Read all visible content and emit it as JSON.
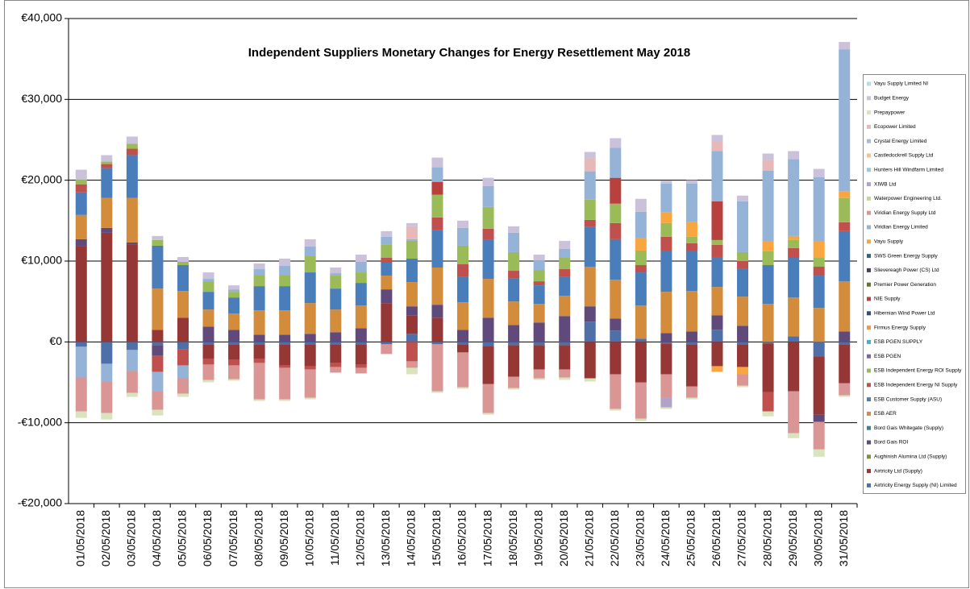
{
  "chart_data": {
    "type": "stacked-bar",
    "title": "Independent Suppliers Monetary Changes  for Energy Resettlement May 2018",
    "categories": [
      "01/05/2018",
      "02/05/2018",
      "03/05/2018",
      "04/05/2018",
      "05/05/2018",
      "06/05/2018",
      "07/05/2018",
      "08/05/2018",
      "09/05/2018",
      "10/05/2018",
      "11/05/2018",
      "12/05/2018",
      "13/05/2018",
      "14/05/2018",
      "15/05/2018",
      "16/05/2018",
      "17/05/2018",
      "18/05/2018",
      "19/05/2018",
      "20/05/2018",
      "21/05/2018",
      "22/05/2018",
      "23/05/2018",
      "24/05/2018",
      "25/05/2018",
      "26/05/2018",
      "27/05/2018",
      "28/05/2018",
      "29/05/2018",
      "30/05/2018",
      "31/05/2018"
    ],
    "ylim": [
      -20000,
      40000
    ],
    "yticks": [
      {
        "value": -20000,
        "label": "-€20,000"
      },
      {
        "value": -10000,
        "label": "-€10,000"
      },
      {
        "value": 0,
        "label": "€0"
      },
      {
        "value": 10000,
        "label": "€10,000"
      },
      {
        "value": 20000,
        "label": "€20,000"
      },
      {
        "value": 30000,
        "label": "€30,000"
      },
      {
        "value": 40000,
        "label": "€40,000"
      }
    ],
    "grid": true,
    "legend": "right",
    "series": [
      {
        "name": "Airtricity Energy Supply (NI) Limited",
        "color": "#4f6fa8",
        "values": [
          -600,
          -2700,
          -1000,
          -400,
          -900,
          -300,
          -300,
          -300,
          -300,
          -300,
          -300,
          -300,
          -300,
          1000,
          -300,
          -300,
          -500,
          -400,
          -400,
          -400,
          2500,
          1400,
          400,
          -200,
          -300,
          1500,
          -300,
          -200,
          700,
          -1800,
          -300
        ]
      },
      {
        "name": "Airtricity Ltd (Supply)",
        "color": "#953735",
        "values": [
          11800,
          13500,
          12000,
          1500,
          3000,
          -1800,
          -1900,
          -1800,
          -2600,
          -2700,
          -2300,
          -2500,
          4800,
          2300,
          3000,
          -1000,
          -4700,
          -3900,
          -3000,
          -3000,
          -4500,
          -4000,
          -5000,
          -3800,
          -5200,
          -3000,
          -2800,
          -6000,
          -6100,
          -7200,
          -4800
        ]
      },
      {
        "name": "Aughinish Alumina Ltd (Supply)",
        "color": "#77933c",
        "values": [
          0,
          0,
          0,
          0,
          0,
          0,
          0,
          0,
          0,
          0,
          0,
          0,
          0,
          0,
          0,
          0,
          0,
          0,
          0,
          0,
          0,
          0,
          0,
          0,
          0,
          0,
          0,
          0,
          0,
          0,
          0
        ]
      },
      {
        "name": "Bord Gais ROI",
        "color": "#604a7b",
        "values": [
          900,
          600,
          300,
          -1300,
          0,
          1900,
          1500,
          900,
          900,
          1000,
          1200,
          1700,
          1700,
          1100,
          1600,
          1500,
          3000,
          2100,
          2400,
          3200,
          1900,
          1500,
          0,
          1100,
          1300,
          1800,
          2000,
          0,
          0,
          -900,
          1300
        ]
      },
      {
        "name": "Bord Gais Whitegate (Supply)",
        "color": "#31859c",
        "values": [
          0,
          0,
          0,
          0,
          0,
          0,
          0,
          0,
          0,
          0,
          0,
          0,
          0,
          0,
          0,
          0,
          0,
          0,
          0,
          0,
          0,
          0,
          0,
          0,
          0,
          0,
          0,
          0,
          0,
          0,
          0
        ]
      },
      {
        "name": "ESB AER",
        "color": "#d38b3c",
        "values": [
          3000,
          3700,
          5500,
          5100,
          3300,
          2100,
          2000,
          3000,
          3000,
          3800,
          2800,
          2800,
          1700,
          3000,
          4600,
          3400,
          4800,
          2900,
          2300,
          2500,
          4900,
          4800,
          4100,
          5100,
          5000,
          3500,
          3600,
          4700,
          4800,
          4200,
          6200
        ]
      },
      {
        "name": "ESB Customer Supply (ASU)",
        "color": "#4a7ebb",
        "values": [
          2800,
          3700,
          5300,
          5300,
          3200,
          2200,
          2000,
          3000,
          3000,
          3800,
          2600,
          2800,
          1600,
          2900,
          4600,
          3200,
          4800,
          2900,
          2300,
          2400,
          4900,
          5000,
          4100,
          5000,
          4900,
          3700,
          3500,
          4800,
          4900,
          4000,
          6200
        ]
      },
      {
        "name": "ESB Independent Energy NI Supply",
        "color": "#c0504d",
        "values": [
          1000,
          500,
          800,
          -2000,
          -2000,
          -700,
          -700,
          -500,
          -300,
          -400,
          -500,
          -400,
          600,
          -2400,
          1600,
          1500,
          1400,
          900,
          500,
          900,
          900,
          2000,
          900,
          1800,
          1000,
          1500,
          900,
          -2400,
          1200,
          1100,
          1100
        ]
      },
      {
        "name": "ESB Independent Energy ROI Supply",
        "color": "#9bbb59",
        "values": [
          600,
          300,
          600,
          700,
          400,
          1300,
          700,
          1400,
          1400,
          2000,
          1600,
          1300,
          1600,
          2200,
          2800,
          2300,
          2700,
          2300,
          1400,
          1400,
          2500,
          2400,
          1800,
          1700,
          800,
          600,
          1100,
          1700,
          1000,
          1100,
          3000
        ]
      },
      {
        "name": "ESB PGEN",
        "color": "#8064a2",
        "values": [
          0,
          0,
          0,
          0,
          0,
          0,
          0,
          0,
          0,
          0,
          0,
          0,
          0,
          0,
          0,
          0,
          0,
          0,
          0,
          0,
          0,
          0,
          0,
          0,
          0,
          0,
          0,
          0,
          0,
          0,
          0
        ]
      },
      {
        "name": "ESB PGEN SUPPLY",
        "color": "#4bacc6",
        "values": [
          0,
          0,
          0,
          0,
          0,
          0,
          0,
          0,
          0,
          0,
          0,
          0,
          0,
          0,
          0,
          0,
          0,
          0,
          0,
          0,
          0,
          0,
          0,
          0,
          0,
          0,
          0,
          0,
          0,
          0,
          0
        ]
      },
      {
        "name": "Firmus Energy Supply",
        "color": "#f79646",
        "values": [
          0,
          0,
          0,
          0,
          0,
          0,
          0,
          0,
          0,
          0,
          0,
          0,
          0,
          0,
          0,
          0,
          0,
          0,
          0,
          0,
          0,
          0,
          0,
          0,
          0,
          0,
          0,
          0,
          0,
          0,
          0
        ]
      },
      {
        "name": "Hibernian Wind Power Ltd",
        "color": "#2c4d75",
        "values": [
          0,
          0,
          0,
          0,
          0,
          0,
          0,
          0,
          0,
          0,
          0,
          0,
          0,
          0,
          0,
          0,
          0,
          0,
          0,
          0,
          0,
          0,
          0,
          0,
          0,
          0,
          0,
          0,
          0,
          0,
          0
        ]
      },
      {
        "name": "NIE Supply",
        "color": "#b8413e",
        "values": [
          0,
          0,
          0,
          0,
          0,
          0,
          0,
          0,
          0,
          0,
          0,
          0,
          0,
          0,
          1600,
          0,
          0,
          0,
          0,
          0,
          0,
          3200,
          0,
          0,
          0,
          4800,
          0,
          0,
          0,
          0,
          0
        ]
      },
      {
        "name": "Premier Power Generation",
        "color": "#5f7530",
        "values": [
          0,
          0,
          0,
          0,
          0,
          0,
          0,
          0,
          0,
          0,
          0,
          0,
          0,
          0,
          0,
          0,
          0,
          0,
          0,
          0,
          0,
          0,
          0,
          0,
          0,
          0,
          0,
          0,
          0,
          0,
          0
        ]
      },
      {
        "name": "Slievereagh Power (CS) Ltd",
        "color": "#4d3b62",
        "values": [
          0,
          0,
          0,
          0,
          0,
          0,
          0,
          0,
          0,
          0,
          0,
          0,
          0,
          0,
          0,
          0,
          0,
          0,
          0,
          0,
          0,
          0,
          0,
          0,
          0,
          0,
          0,
          0,
          0,
          0,
          0
        ]
      },
      {
        "name": "SWS Green Energy Supply",
        "color": "#276a7c",
        "values": [
          0,
          0,
          0,
          0,
          0,
          0,
          0,
          0,
          0,
          0,
          0,
          0,
          0,
          0,
          0,
          0,
          0,
          0,
          0,
          0,
          0,
          0,
          0,
          0,
          0,
          0,
          0,
          0,
          0,
          0,
          0
        ]
      },
      {
        "name": "Vayu Supply",
        "color": "#f9a640",
        "values": [
          0,
          0,
          0,
          0,
          0,
          0,
          0,
          0,
          0,
          0,
          0,
          0,
          0,
          0,
          0,
          0,
          0,
          0,
          0,
          0,
          0,
          0,
          1500,
          1300,
          1800,
          -700,
          -900,
          1200,
          500,
          2000,
          800
        ]
      },
      {
        "name": "Viridian Energy Limited",
        "color": "#95b3d7",
        "values": [
          -3800,
          -2200,
          -2600,
          -2400,
          -1600,
          300,
          300,
          700,
          1100,
          1200,
          300,
          1300,
          1000,
          200,
          1800,
          2200,
          2600,
          2400,
          1200,
          1100,
          3500,
          3700,
          3300,
          3600,
          4800,
          6200,
          6300,
          8800,
          9500,
          8000,
          17600
        ]
      },
      {
        "name": "Viridian Energy Supply Ltd",
        "color": "#d99694",
        "values": [
          -4200,
          -3900,
          -2700,
          -2300,
          -1900,
          -1900,
          -1700,
          -4500,
          -3900,
          -3500,
          -700,
          -700,
          -1200,
          -800,
          -5800,
          -4300,
          -3600,
          -1400,
          -1100,
          -1000,
          0,
          -4300,
          -4500,
          -2900,
          -1400,
          0,
          -1400,
          0,
          -5200,
          -3400,
          -1500
        ]
      },
      {
        "name": "Waterpower Engineering Ltd.",
        "color": "#c3d69b",
        "values": [
          0,
          0,
          0,
          0,
          0,
          0,
          0,
          0,
          0,
          0,
          0,
          0,
          0,
          0,
          0,
          0,
          0,
          0,
          0,
          0,
          0,
          0,
          0,
          0,
          0,
          0,
          0,
          0,
          0,
          0,
          0
        ]
      },
      {
        "name": "XIWB Ltd",
        "color": "#b3a2c7",
        "values": [
          0,
          0,
          0,
          0,
          0,
          0,
          0,
          0,
          0,
          0,
          0,
          0,
          0,
          0,
          0,
          0,
          0,
          0,
          0,
          0,
          0,
          0,
          0,
          -1200,
          0,
          0,
          0,
          0,
          0,
          0,
          0
        ]
      },
      {
        "name": "Hunters Hill Windfarm Limited",
        "color": "#93cddd",
        "values": [
          0,
          0,
          0,
          0,
          0,
          0,
          0,
          0,
          0,
          0,
          0,
          0,
          0,
          0,
          0,
          0,
          0,
          0,
          0,
          0,
          0,
          0,
          0,
          0,
          0,
          0,
          0,
          0,
          0,
          0,
          0
        ]
      },
      {
        "name": "Castledockrell Supply Ltd",
        "color": "#fac090",
        "values": [
          0,
          0,
          0,
          0,
          0,
          0,
          0,
          0,
          0,
          0,
          0,
          0,
          0,
          0,
          0,
          0,
          0,
          0,
          0,
          0,
          0,
          0,
          0,
          0,
          0,
          0,
          0,
          0,
          0,
          0,
          0
        ]
      },
      {
        "name": "Crystal Energy Limited",
        "color": "#a6b9d9",
        "values": [
          0,
          0,
          0,
          0,
          0,
          0,
          0,
          0,
          0,
          0,
          0,
          0,
          0,
          0,
          0,
          0,
          0,
          0,
          0,
          0,
          0,
          0,
          0,
          0,
          0,
          0,
          0,
          0,
          0,
          0,
          0
        ]
      },
      {
        "name": "Ecopower Limited",
        "color": "#e6b9b8",
        "values": [
          0,
          0,
          0,
          0,
          0,
          0,
          0,
          0,
          0,
          0,
          0,
          0,
          0,
          1600,
          0,
          0,
          0,
          0,
          0,
          0,
          1600,
          0,
          0,
          0,
          0,
          1200,
          0,
          1300,
          0,
          0,
          0
        ]
      },
      {
        "name": "Prepaypower",
        "color": "#d7e4bd",
        "values": [
          -800,
          -800,
          -500,
          -700,
          -400,
          -300,
          -200,
          -200,
          -200,
          -200,
          0,
          0,
          0,
          -800,
          -200,
          -200,
          -200,
          -200,
          -200,
          -300,
          -400,
          -200,
          -300,
          -200,
          -200,
          0,
          -200,
          -600,
          -600,
          -900,
          -200
        ]
      },
      {
        "name": "Budget Energy",
        "color": "#ccc1da",
        "values": [
          1200,
          800,
          900,
          500,
          600,
          800,
          500,
          700,
          900,
          900,
          700,
          900,
          700,
          400,
          1200,
          900,
          1000,
          800,
          700,
          1000,
          800,
          1200,
          1600,
          300,
          400,
          800,
          700,
          800,
          1000,
          1000,
          900
        ]
      },
      {
        "name": "Vayu Supply Limited NI",
        "color": "#b7dee8",
        "values": [
          0,
          0,
          0,
          0,
          0,
          0,
          0,
          0,
          0,
          0,
          0,
          0,
          0,
          0,
          0,
          0,
          0,
          0,
          0,
          0,
          0,
          0,
          0,
          0,
          0,
          0,
          0,
          0,
          0,
          0,
          0
        ]
      }
    ]
  }
}
